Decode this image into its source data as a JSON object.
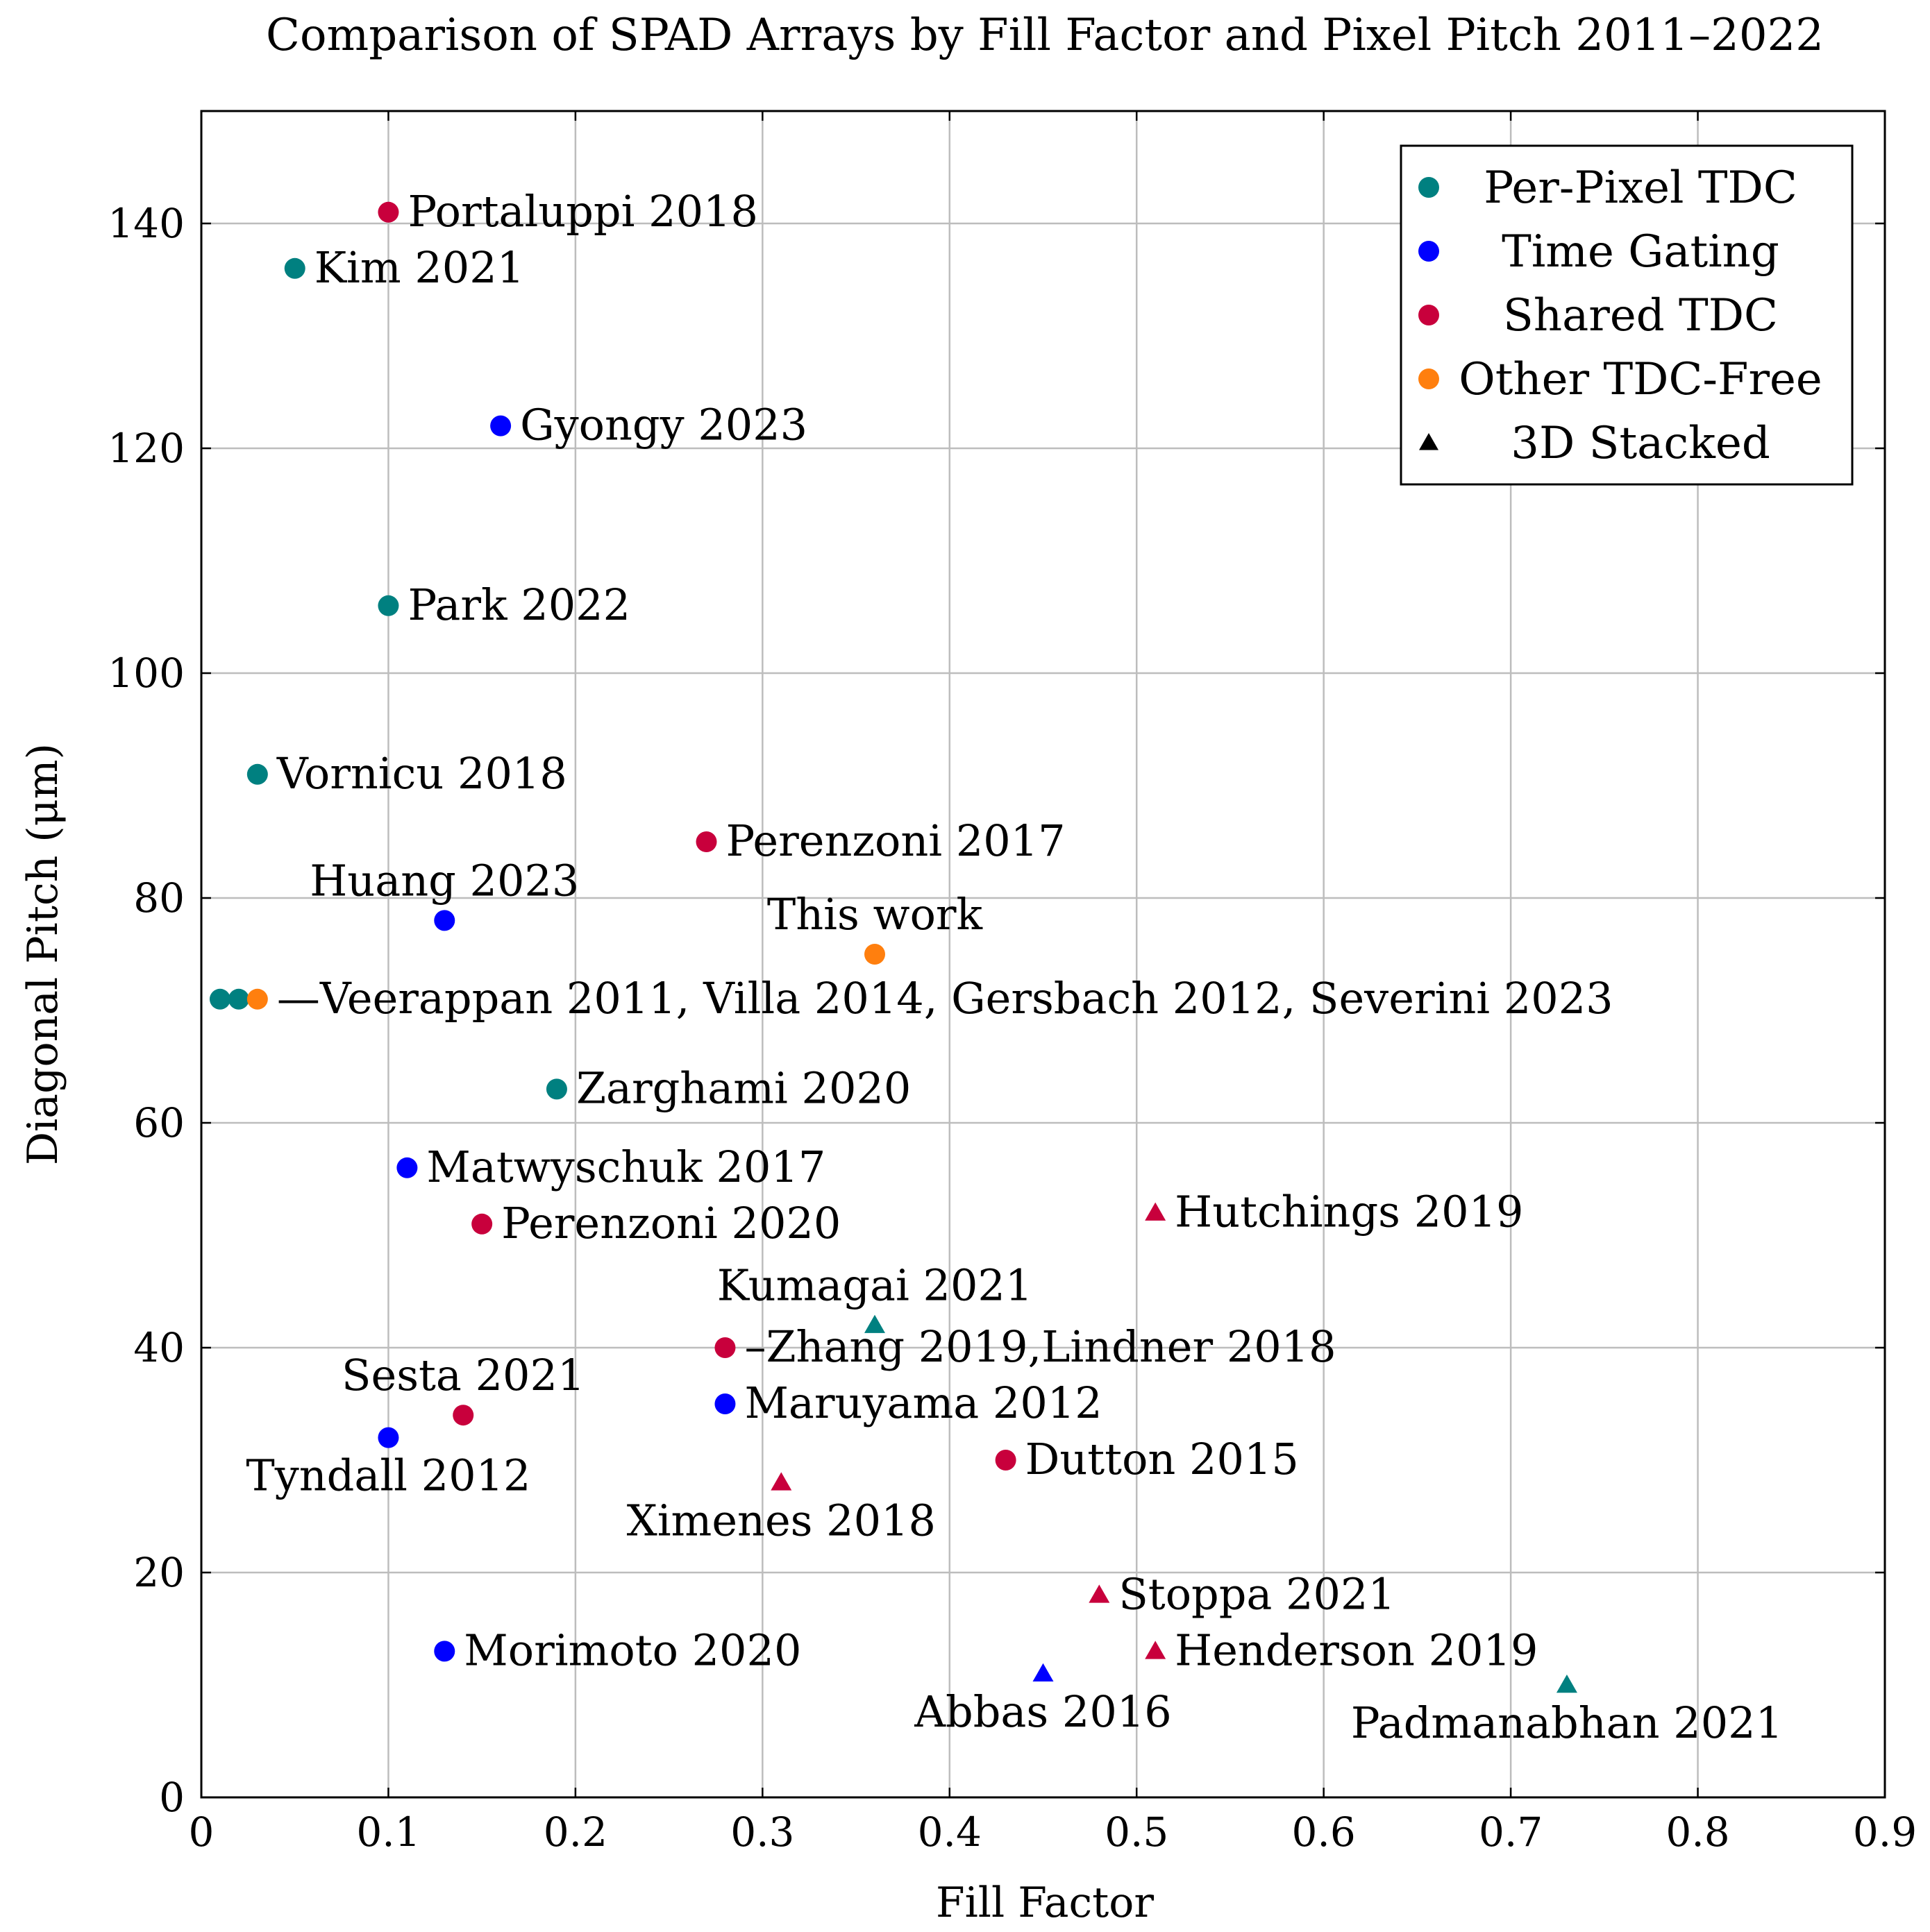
{
  "chart_data": {
    "type": "scatter",
    "title": "Comparison of SPAD Arrays by Fill Factor and Pixel Pitch 2011–2022",
    "xlabel": "Fill Factor",
    "ylabel": "Diagonal Pitch (μm)",
    "xlim": [
      0,
      0.9
    ],
    "ylim": [
      0,
      150
    ],
    "xticks": [
      0,
      0.1,
      0.2,
      0.3,
      0.4,
      0.5,
      0.6,
      0.7,
      0.8,
      0.9
    ],
    "xtick_labels": [
      "0",
      "0.1",
      "0.2",
      "0.3",
      "0.4",
      "0.5",
      "0.6",
      "0.7",
      "0.8",
      "0.9"
    ],
    "yticks": [
      0,
      20,
      40,
      60,
      80,
      100,
      120,
      140
    ],
    "ytick_labels": [
      "0",
      "20",
      "40",
      "60",
      "80",
      "100",
      "120",
      "140"
    ],
    "grid": true,
    "legend_position": "top-right",
    "categories": [
      {
        "key": "per_pixel_tdc",
        "name": "Per-Pixel TDC",
        "color": "#008080"
      },
      {
        "key": "time_gating",
        "name": "Time Gating",
        "color": "#0000ff"
      },
      {
        "key": "shared_tdc",
        "name": "Shared TDC",
        "color": "#c8003c"
      },
      {
        "key": "other_tdc_free",
        "name": "Other TDC-Free",
        "color": "#ff7f0e"
      }
    ],
    "legend_marker_legend": {
      "name": "3D Stacked",
      "color": "#000000"
    },
    "points": [
      {
        "x": 0.1,
        "y": 141,
        "category": "shared_tdc",
        "stacked": false,
        "label": "Portaluppi 2018",
        "anchor": "right"
      },
      {
        "x": 0.05,
        "y": 136,
        "category": "per_pixel_tdc",
        "stacked": false,
        "label": "Kim 2021",
        "anchor": "right"
      },
      {
        "x": 0.16,
        "y": 122,
        "category": "time_gating",
        "stacked": false,
        "label": "Gyongy 2023",
        "anchor": "right"
      },
      {
        "x": 0.1,
        "y": 106,
        "category": "per_pixel_tdc",
        "stacked": false,
        "label": "Park 2022",
        "anchor": "right"
      },
      {
        "x": 0.03,
        "y": 91,
        "category": "per_pixel_tdc",
        "stacked": false,
        "label": "Vornicu 2018",
        "anchor": "right"
      },
      {
        "x": 0.27,
        "y": 85,
        "category": "shared_tdc",
        "stacked": false,
        "label": "Perenzoni 2017",
        "anchor": "right"
      },
      {
        "x": 0.13,
        "y": 78,
        "category": "time_gating",
        "stacked": false,
        "label": "Huang 2023",
        "anchor": "above"
      },
      {
        "x": 0.36,
        "y": 75,
        "category": "other_tdc_free",
        "stacked": false,
        "label": "This work",
        "anchor": "above"
      },
      {
        "x": 0.01,
        "y": 71,
        "category": "per_pixel_tdc",
        "stacked": false,
        "label": "",
        "anchor": "none"
      },
      {
        "x": 0.02,
        "y": 71,
        "category": "per_pixel_tdc",
        "stacked": false,
        "label": "",
        "anchor": "none"
      },
      {
        "x": 0.03,
        "y": 71,
        "category": "other_tdc_free",
        "stacked": false,
        "label": "—Veerappan 2011, Villa 2014, Gersbach 2012, Severini 2023",
        "anchor": "right"
      },
      {
        "x": 0.19,
        "y": 63,
        "category": "per_pixel_tdc",
        "stacked": false,
        "label": "Zarghami 2020",
        "anchor": "right"
      },
      {
        "x": 0.11,
        "y": 56,
        "category": "time_gating",
        "stacked": false,
        "label": "Matwyschuk 2017",
        "anchor": "right"
      },
      {
        "x": 0.15,
        "y": 51,
        "category": "shared_tdc",
        "stacked": false,
        "label": "Perenzoni 2020",
        "anchor": "right"
      },
      {
        "x": 0.51,
        "y": 52,
        "category": "shared_tdc",
        "stacked": true,
        "label": "Hutchings 2019",
        "anchor": "right"
      },
      {
        "x": 0.36,
        "y": 42,
        "category": "per_pixel_tdc",
        "stacked": true,
        "label": "Kumagai 2021",
        "anchor": "above"
      },
      {
        "x": 0.28,
        "y": 40,
        "category": "shared_tdc",
        "stacked": false,
        "label": "–Zhang 2019,Lindner 2018",
        "anchor": "right"
      },
      {
        "x": 0.14,
        "y": 34,
        "category": "shared_tdc",
        "stacked": false,
        "label": "Sesta 2021",
        "anchor": "above"
      },
      {
        "x": 0.28,
        "y": 35,
        "category": "time_gating",
        "stacked": false,
        "label": "Maruyama 2012",
        "anchor": "right"
      },
      {
        "x": 0.1,
        "y": 32,
        "category": "time_gating",
        "stacked": false,
        "label": "Tyndall 2012",
        "anchor": "below"
      },
      {
        "x": 0.43,
        "y": 30,
        "category": "shared_tdc",
        "stacked": false,
        "label": "Dutton 2015",
        "anchor": "right"
      },
      {
        "x": 0.31,
        "y": 28,
        "category": "shared_tdc",
        "stacked": true,
        "label": "Ximenes 2018",
        "anchor": "below"
      },
      {
        "x": 0.48,
        "y": 18,
        "category": "shared_tdc",
        "stacked": true,
        "label": "Stoppa 2021",
        "anchor": "right"
      },
      {
        "x": 0.13,
        "y": 13,
        "category": "time_gating",
        "stacked": false,
        "label": "Morimoto 2020",
        "anchor": "right"
      },
      {
        "x": 0.51,
        "y": 13,
        "category": "shared_tdc",
        "stacked": true,
        "label": "Henderson 2019",
        "anchor": "right"
      },
      {
        "x": 0.45,
        "y": 11,
        "category": "time_gating",
        "stacked": true,
        "label": "Abbas 2016",
        "anchor": "below"
      },
      {
        "x": 0.73,
        "y": 10,
        "category": "per_pixel_tdc",
        "stacked": true,
        "label": "Padmanabhan 2021",
        "anchor": "below"
      }
    ]
  }
}
